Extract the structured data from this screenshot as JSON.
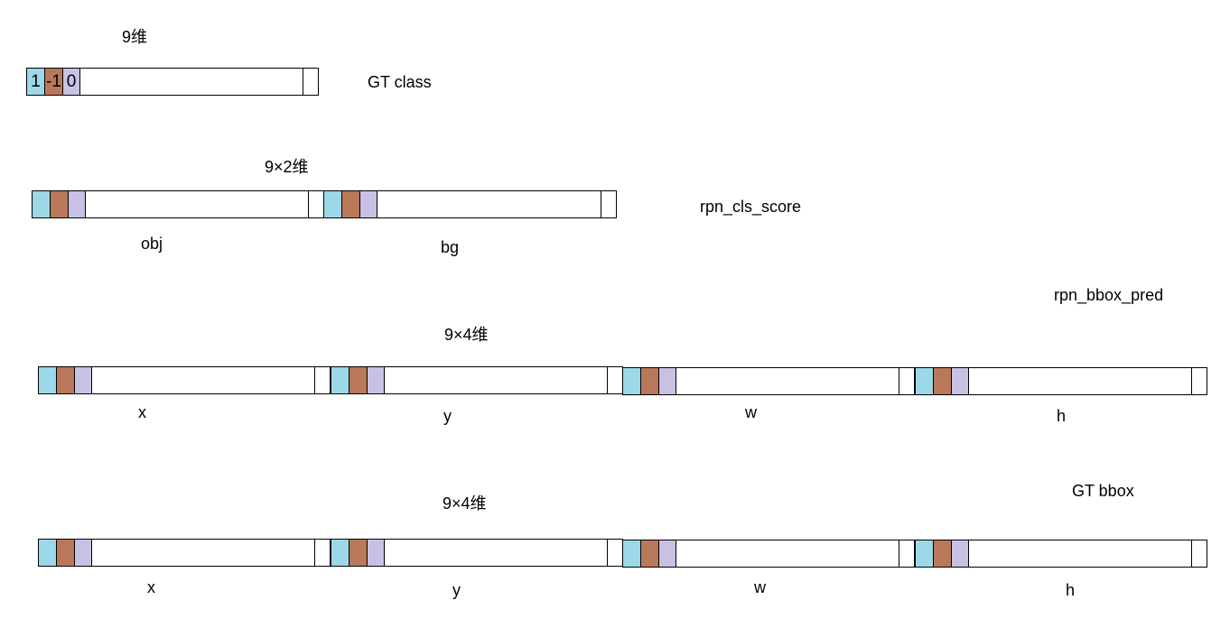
{
  "colors": {
    "blue": "#9cd8e8",
    "brown": "#b9785a",
    "purple": "#c9c1e4"
  },
  "gt_class": {
    "dim_label": "9维",
    "name": "GT class",
    "cells": [
      "1",
      "-1",
      "0"
    ]
  },
  "rpn_cls_score": {
    "dim_label": "9×2维",
    "name": "rpn_cls_score",
    "parts": [
      "obj",
      "bg"
    ]
  },
  "rpn_bbox_pred": {
    "dim_label": "9×4维",
    "name": "rpn_bbox_pred",
    "parts": [
      "x",
      "y",
      "w",
      "h"
    ]
  },
  "gt_bbox": {
    "dim_label": "9×4维",
    "name": "GT bbox",
    "parts": [
      "x",
      "y",
      "w",
      "h"
    ]
  }
}
